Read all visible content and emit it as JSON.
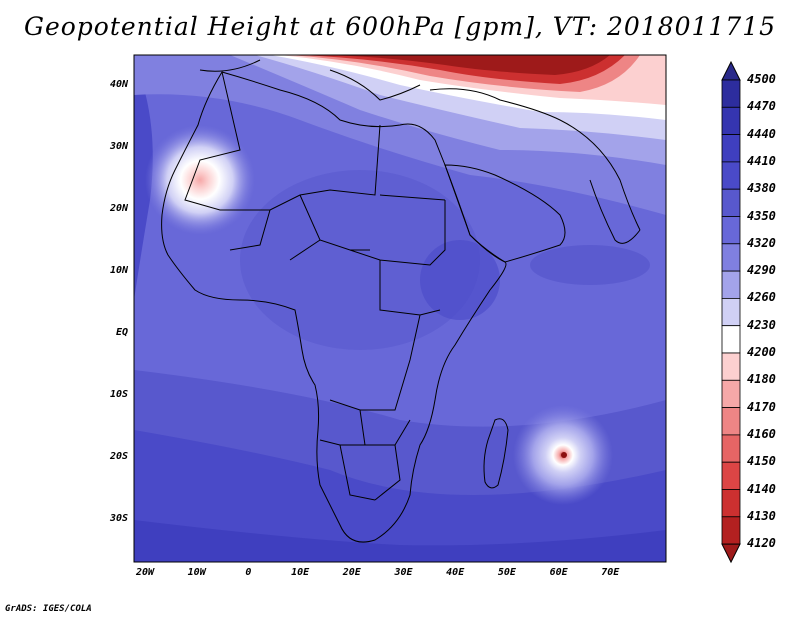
{
  "title": "Geopotential Height at 600hPa [gpm], VT: 2018011715",
  "lat_labels": [
    "40N",
    "30N",
    "20N",
    "10N",
    "EQ",
    "10S",
    "20S",
    "30S"
  ],
  "lon_labels": [
    "20W",
    "10W",
    "0",
    "10E",
    "20E",
    "30E",
    "40E",
    "50E",
    "60E",
    "70E"
  ],
  "colorbar": {
    "labels": [
      "4500",
      "4470",
      "4440",
      "4410",
      "4380",
      "4350",
      "4320",
      "4290",
      "4260",
      "4230",
      "4200",
      "4180",
      "4170",
      "4160",
      "4150",
      "4140",
      "4130",
      "4120"
    ],
    "colors": [
      "#2d2d9e",
      "#3535b0",
      "#3f3fbf",
      "#4a4ac8",
      "#5858cd",
      "#6868d8",
      "#8080e0",
      "#a3a3ea",
      "#d0d0f5",
      "#ffffff",
      "#fcd0d0",
      "#f6a8a8",
      "#ee8585",
      "#e66565",
      "#dc4545",
      "#cc3030",
      "#b32020"
    ],
    "top_arrow": "#2a2a8a",
    "bottom_arrow": "#9e1a1a"
  },
  "credit": "GrADS: IGES/COLA"
}
